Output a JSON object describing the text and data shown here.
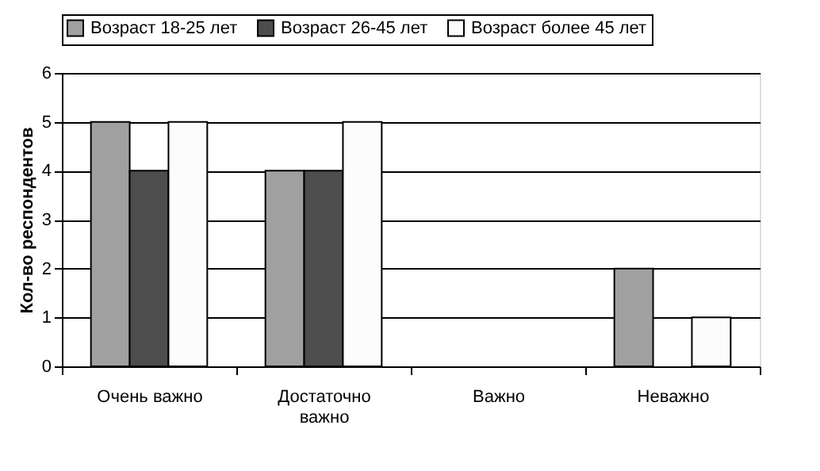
{
  "chart_data": {
    "type": "bar",
    "ylabel": "Кол-во респондентов",
    "categories": [
      "Очень важно",
      "Достаточно важно",
      "Важно",
      "Неважно"
    ],
    "series": [
      {
        "name": "Возраст 18-25 лет",
        "color": "#a0a0a0",
        "values": [
          5,
          4,
          0,
          2
        ]
      },
      {
        "name": "Возраст 26-45 лет",
        "color": "#4d4d4d",
        "values": [
          4,
          4,
          0,
          0
        ]
      },
      {
        "name": "Возраст более 45 лет",
        "color": "#fcfcfc",
        "values": [
          5,
          5,
          0,
          1
        ]
      }
    ],
    "ylim": [
      0,
      6
    ],
    "yticks": [
      0,
      1,
      2,
      3,
      4,
      5,
      6
    ],
    "grid": "y",
    "legend": "top"
  }
}
